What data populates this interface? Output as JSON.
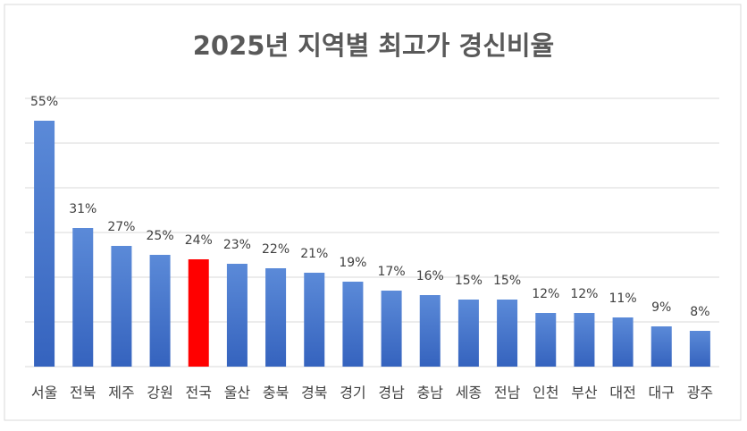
{
  "chart_data": {
    "type": "bar",
    "title": "2025년 지역별 최고가 경신비율",
    "categories": [
      "서울",
      "전북",
      "제주",
      "강원",
      "전국",
      "울산",
      "충북",
      "경북",
      "경기",
      "경남",
      "충남",
      "세종",
      "전남",
      "인천",
      "부산",
      "대전",
      "대구",
      "광주"
    ],
    "values": [
      55,
      31,
      27,
      25,
      24,
      23,
      22,
      21,
      19,
      17,
      16,
      15,
      15,
      12,
      12,
      11,
      9,
      8
    ],
    "value_labels": [
      "55%",
      "31%",
      "27%",
      "25%",
      "24%",
      "23%",
      "22%",
      "21%",
      "19%",
      "17%",
      "16%",
      "15%",
      "15%",
      "12%",
      "12%",
      "11%",
      "9%",
      "8%"
    ],
    "colors": [
      "#4472c4",
      "#4472c4",
      "#4472c4",
      "#4472c4",
      "#ff0000",
      "#4472c4",
      "#4472c4",
      "#4472c4",
      "#4472c4",
      "#4472c4",
      "#4472c4",
      "#4472c4",
      "#4472c4",
      "#4472c4",
      "#4472c4",
      "#4472c4",
      "#4472c4",
      "#4472c4"
    ],
    "ylim": [
      0,
      60
    ],
    "yticks": [
      0,
      10,
      20,
      30,
      40,
      50,
      60
    ],
    "grid": true
  }
}
